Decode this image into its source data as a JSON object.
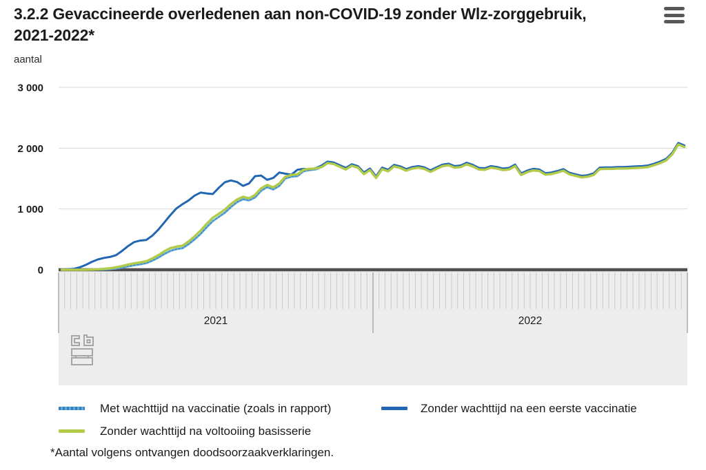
{
  "header": {
    "title": "3.2.2 Gevaccineerde overledenen aan non-COVID-19 zonder Wlz-zorggebruik, 2021-2022*",
    "menu_icon": "hamburger-menu-icon"
  },
  "footnote": "*Aantal volgens ontvangen doodsoorzaakverklaringen.",
  "logo": "cbs-logo",
  "colors": {
    "grid": "#d9d9d9",
    "zero_axis": "#4f4f4f",
    "band": "#ededed",
    "week_tick": "#c9c9c9",
    "year_separator": "#9e9e9e",
    "logo_gray": "#a6a6a6",
    "text": "#1a1a1a",
    "menu_icon": "#58585a"
  },
  "chart_data": {
    "type": "line",
    "title": "Gevaccineerde overledenen aan non-COVID-19 zonder Wlz-zorggebruik, 2021-2022",
    "ylabel": "aantal",
    "xlabel": "",
    "grid": "horizontal",
    "legend_position": "bottom",
    "ylim": [
      0,
      3000
    ],
    "yticks": [
      0,
      1000,
      2000,
      3000
    ],
    "ytick_labels": [
      "0",
      "1 000",
      "2 000",
      "3 000"
    ],
    "x_axis": {
      "unit": "week",
      "years": [
        {
          "label": "2021",
          "weeks": 52
        },
        {
          "label": "2022",
          "weeks": 52
        }
      ]
    },
    "series": [
      {
        "name": "Met wachttijd na vaccinatie (zoals in rapport)",
        "color": "#5ea8d8",
        "dash_color": "#2f7ec2",
        "values": [
          0,
          0,
          0,
          0,
          0,
          0,
          2,
          5,
          10,
          20,
          35,
          55,
          75,
          90,
          110,
          150,
          200,
          260,
          310,
          340,
          355,
          420,
          500,
          590,
          700,
          800,
          870,
          940,
          1030,
          1110,
          1160,
          1140,
          1190,
          1300,
          1360,
          1320,
          1380,
          1500,
          1530,
          1540,
          1620,
          1640,
          1650,
          1690,
          1755,
          1740,
          1695,
          1650,
          1710,
          1680,
          1575,
          1640,
          1510,
          1655,
          1620,
          1700,
          1675,
          1630,
          1665,
          1680,
          1660,
          1610,
          1660,
          1705,
          1720,
          1680,
          1690,
          1735,
          1700,
          1650,
          1645,
          1680,
          1665,
          1640,
          1650,
          1705,
          1560,
          1605,
          1635,
          1625,
          1565,
          1575,
          1600,
          1630,
          1570,
          1545,
          1520,
          1530,
          1560,
          1655,
          1660,
          1660,
          1665,
          1665,
          1670,
          1675,
          1680,
          1690,
          1720,
          1755,
          1800,
          1900,
          2060,
          2020
        ]
      },
      {
        "name": "Zonder wachttijd na een eerste vaccinatie",
        "color": "#2066b2",
        "values": [
          5,
          8,
          15,
          40,
          80,
          130,
          170,
          195,
          210,
          240,
          310,
          390,
          455,
          480,
          490,
          560,
          660,
          780,
          900,
          1010,
          1080,
          1140,
          1220,
          1270,
          1255,
          1245,
          1350,
          1440,
          1470,
          1445,
          1380,
          1420,
          1540,
          1550,
          1480,
          1510,
          1600,
          1580,
          1565,
          1645,
          1660,
          1650,
          1670,
          1715,
          1780,
          1765,
          1720,
          1675,
          1735,
          1705,
          1600,
          1665,
          1535,
          1680,
          1645,
          1725,
          1700,
          1655,
          1690,
          1705,
          1685,
          1635,
          1685,
          1730,
          1745,
          1705,
          1715,
          1760,
          1725,
          1675,
          1670,
          1705,
          1690,
          1665,
          1675,
          1730,
          1585,
          1630,
          1660,
          1650,
          1590,
          1600,
          1625,
          1655,
          1595,
          1570,
          1545,
          1555,
          1585,
          1680,
          1685,
          1685,
          1690,
          1690,
          1695,
          1700,
          1705,
          1715,
          1745,
          1780,
          1825,
          1925,
          2085,
          2045
        ]
      },
      {
        "name": "Zonder wachttijd na voltooiing basisserie",
        "color": "#b3cb4a",
        "values": [
          0,
          0,
          0,
          0,
          0,
          3,
          8,
          15,
          25,
          40,
          60,
          85,
          105,
          120,
          140,
          185,
          240,
          305,
          355,
          380,
          395,
          465,
          550,
          645,
          755,
          855,
          920,
          990,
          1080,
          1155,
          1200,
          1175,
          1230,
          1340,
          1395,
          1355,
          1420,
          1530,
          1560,
          1570,
          1645,
          1660,
          1665,
          1690,
          1755,
          1740,
          1695,
          1650,
          1710,
          1680,
          1575,
          1640,
          1510,
          1655,
          1620,
          1700,
          1675,
          1630,
          1665,
          1680,
          1660,
          1610,
          1660,
          1705,
          1720,
          1680,
          1690,
          1735,
          1700,
          1650,
          1645,
          1680,
          1665,
          1640,
          1650,
          1705,
          1560,
          1605,
          1635,
          1625,
          1565,
          1575,
          1600,
          1630,
          1570,
          1545,
          1520,
          1530,
          1560,
          1655,
          1660,
          1660,
          1665,
          1665,
          1670,
          1675,
          1680,
          1690,
          1720,
          1755,
          1800,
          1900,
          2060,
          2020
        ]
      }
    ]
  }
}
